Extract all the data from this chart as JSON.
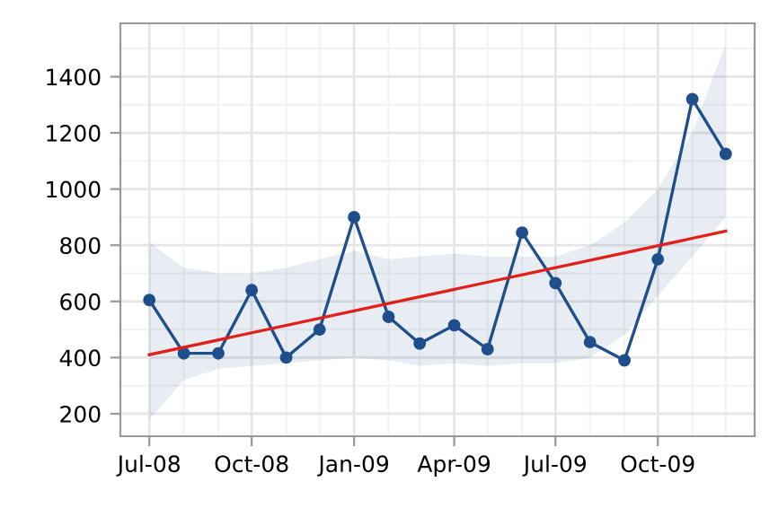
{
  "chart_data": {
    "type": "line",
    "x": [
      "2008-07",
      "2008-08",
      "2008-09",
      "2008-10",
      "2008-11",
      "2008-12",
      "2009-01",
      "2009-02",
      "2009-03",
      "2009-04",
      "2009-05",
      "2009-06",
      "2009-07",
      "2009-08",
      "2009-09",
      "2009-10",
      "2009-11",
      "2009-12"
    ],
    "series": [
      {
        "color": "#1f4e8c",
        "marker": "circle",
        "values": [
          605,
          415,
          415,
          640,
          400,
          500,
          900,
          545,
          450,
          515,
          430,
          845,
          665,
          455,
          390,
          750,
          1320,
          1125
        ],
        "lower": [
          180,
          320,
          360,
          370,
          380,
          390,
          400,
          390,
          370,
          380,
          370,
          380,
          380,
          400,
          480,
          620,
          760,
          900
        ],
        "upper": [
          810,
          720,
          700,
          700,
          720,
          750,
          780,
          750,
          760,
          770,
          760,
          760,
          760,
          800,
          880,
          1000,
          1200,
          1520
        ]
      },
      {
        "color": "#e0201b",
        "marker": "none",
        "x": [
          "2008-07",
          "2009-12"
        ],
        "values": [
          410,
          850
        ]
      }
    ],
    "xlim": [
      "2008-06-05",
      "2009-12-27"
    ],
    "xticks": [
      {
        "value": "2008-07",
        "label": "Jul-08"
      },
      {
        "value": "2008-10",
        "label": "Oct-08"
      },
      {
        "value": "2009-01",
        "label": "Jan-09"
      },
      {
        "value": "2009-04",
        "label": "Apr-09"
      },
      {
        "value": "2009-07",
        "label": "Jul-09"
      },
      {
        "value": "2009-10",
        "label": "Oct-09"
      }
    ],
    "ylim": [
      120,
      1590
    ],
    "yticks": [
      200,
      400,
      600,
      800,
      1000,
      1200,
      1400
    ],
    "grid": true
  }
}
